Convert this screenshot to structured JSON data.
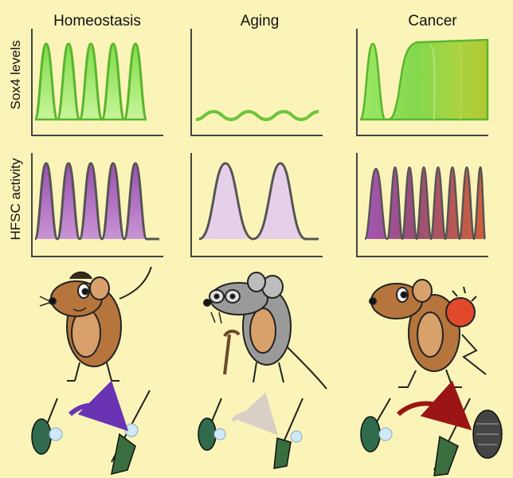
{
  "columns": [
    "Homeostasis",
    "Aging",
    "Cancer"
  ],
  "rows": [
    "Sox4 levels",
    "HFSC activity"
  ],
  "colors": {
    "background": "#fbf4b8",
    "sox4_fill": "#8ee25a",
    "sox4_fill_dark": "#66c23a",
    "hfsc_fill": "#a35ab3",
    "hfsc_fill_light": "#e6cfe8",
    "hfsc_fill_tumor": "#b8593c",
    "arrow_homeostasis": "#7a3fbf",
    "arrow_aging": "#e0d8d0",
    "arrow_cancer": "#a01818",
    "mouse_body": "#b5753c",
    "mouse_belly": "#d8a06a",
    "mouse_aged": "#9a9a9a",
    "tumor": "#e04a2a"
  },
  "panels": {
    "sox4": [
      {
        "pattern": "regular-high-peaks",
        "peaks": 5
      },
      {
        "pattern": "low-flat-oscillation",
        "peaks": 4
      },
      {
        "pattern": "single-peak-then-sustained-high",
        "peaks": 1
      }
    ],
    "hfsc": [
      {
        "pattern": "regular-peaks",
        "peaks": 5
      },
      {
        "pattern": "broad-infrequent-peaks",
        "peaks": 2
      },
      {
        "pattern": "rapid-frequent-peaks",
        "peaks": 9
      }
    ]
  },
  "icons": {
    "mice": [
      "healthy-mouse-icon",
      "old-mouse-icon",
      "tumor-mouse-icon"
    ],
    "hair_follicles": [
      "hair-follicle-cycle-icon",
      "hair-follicle-cycle-icon",
      "hair-follicle-tumor-icon"
    ]
  }
}
